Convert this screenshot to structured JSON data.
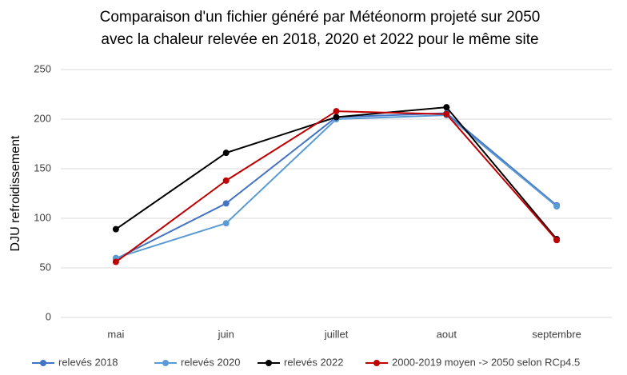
{
  "chart_data": {
    "type": "line",
    "title": [
      "Comparaison d'un fichier généré par Météonorm projeté sur 2050",
      "avec la chaleur relevée en 2018, 2020 et 2022 pour le même site"
    ],
    "y_label": "DJU refroidissement",
    "categories": [
      "mai",
      "juin",
      "juillet",
      "aout",
      "septembre"
    ],
    "series": [
      {
        "name": "relevés 2018",
        "color": "#4472c4",
        "values": [
          59,
          115,
          202,
          206,
          113
        ]
      },
      {
        "name": "relevés 2020",
        "color": "#5b9bd5",
        "values": [
          60,
          95,
          200,
          204,
          112
        ]
      },
      {
        "name": "relevés 2022",
        "color": "#000000",
        "values": [
          89,
          166,
          202,
          212,
          79
        ]
      },
      {
        "name": "2000-2019 moyen -> 2050 selon RCp4.5",
        "color": "#c00000",
        "values": [
          56,
          138,
          208,
          205,
          78
        ]
      }
    ],
    "ylim": [
      0,
      250
    ],
    "yticks": [
      0,
      50,
      100,
      150,
      200,
      250
    ],
    "grid": true,
    "legend": "bottom"
  }
}
